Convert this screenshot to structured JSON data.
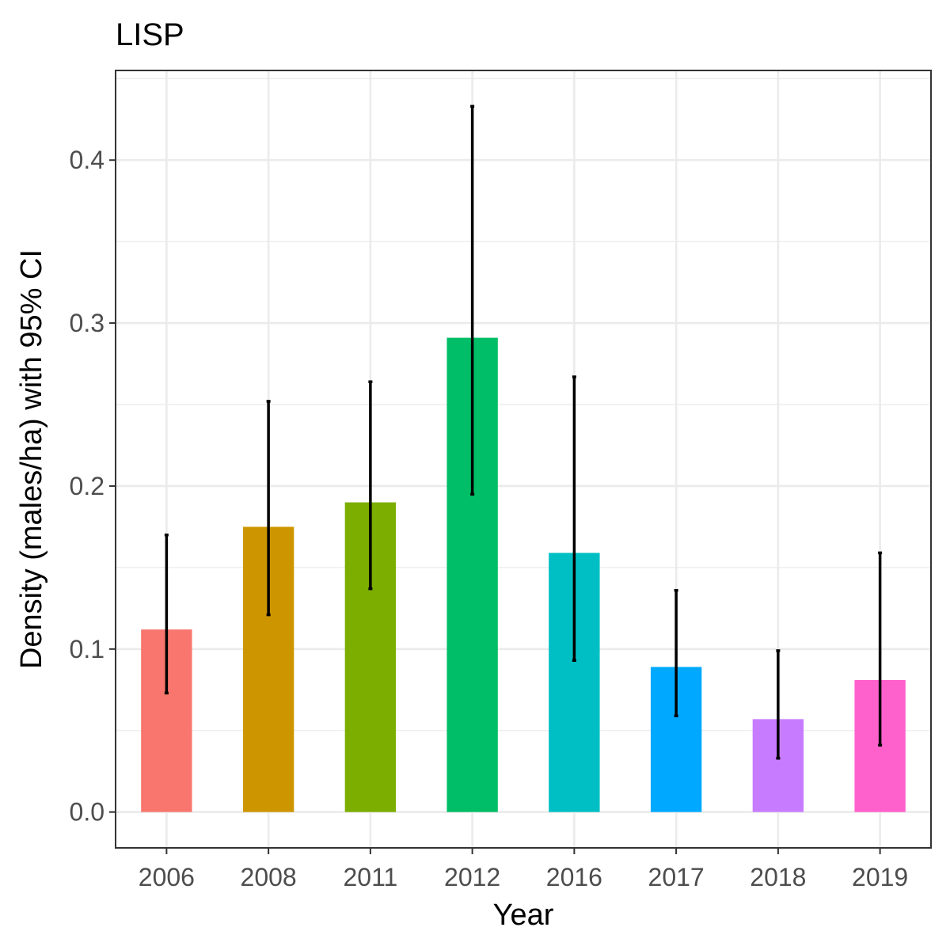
{
  "chart_data": {
    "type": "bar",
    "title": "LISP",
    "xlabel": "Year",
    "ylabel": "Density (males/ha) with 95% CI",
    "categories": [
      "2006",
      "2008",
      "2011",
      "2012",
      "2016",
      "2017",
      "2018",
      "2019"
    ],
    "values": [
      0.112,
      0.175,
      0.19,
      0.291,
      0.159,
      0.089,
      0.057,
      0.081
    ],
    "ci_lower": [
      0.073,
      0.121,
      0.137,
      0.195,
      0.093,
      0.059,
      0.033,
      0.041
    ],
    "ci_upper": [
      0.17,
      0.252,
      0.264,
      0.433,
      0.267,
      0.136,
      0.099,
      0.159
    ],
    "colors": [
      "#F8766D",
      "#CD9600",
      "#7CAE00",
      "#00BE67",
      "#00BFC4",
      "#00A9FF",
      "#C77CFF",
      "#FF61CC"
    ],
    "yticks": [
      0.0,
      0.1,
      0.2,
      0.3,
      0.4
    ],
    "ytick_labels": [
      "0.0",
      "0.1",
      "0.2",
      "0.3",
      "0.4"
    ],
    "ylim": [
      -0.022,
      0.455
    ],
    "grid": true,
    "legend": "none"
  }
}
